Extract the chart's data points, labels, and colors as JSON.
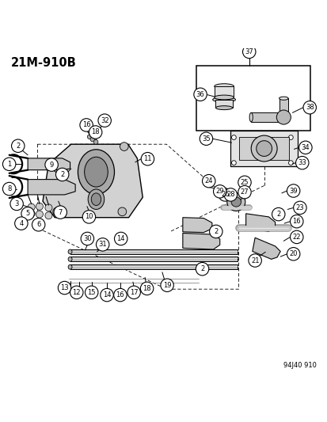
{
  "title": "21M-910B",
  "footer": "94J40 910",
  "bg_color": "#ffffff",
  "figsize": [
    4.14,
    5.33
  ],
  "dpi": 100
}
